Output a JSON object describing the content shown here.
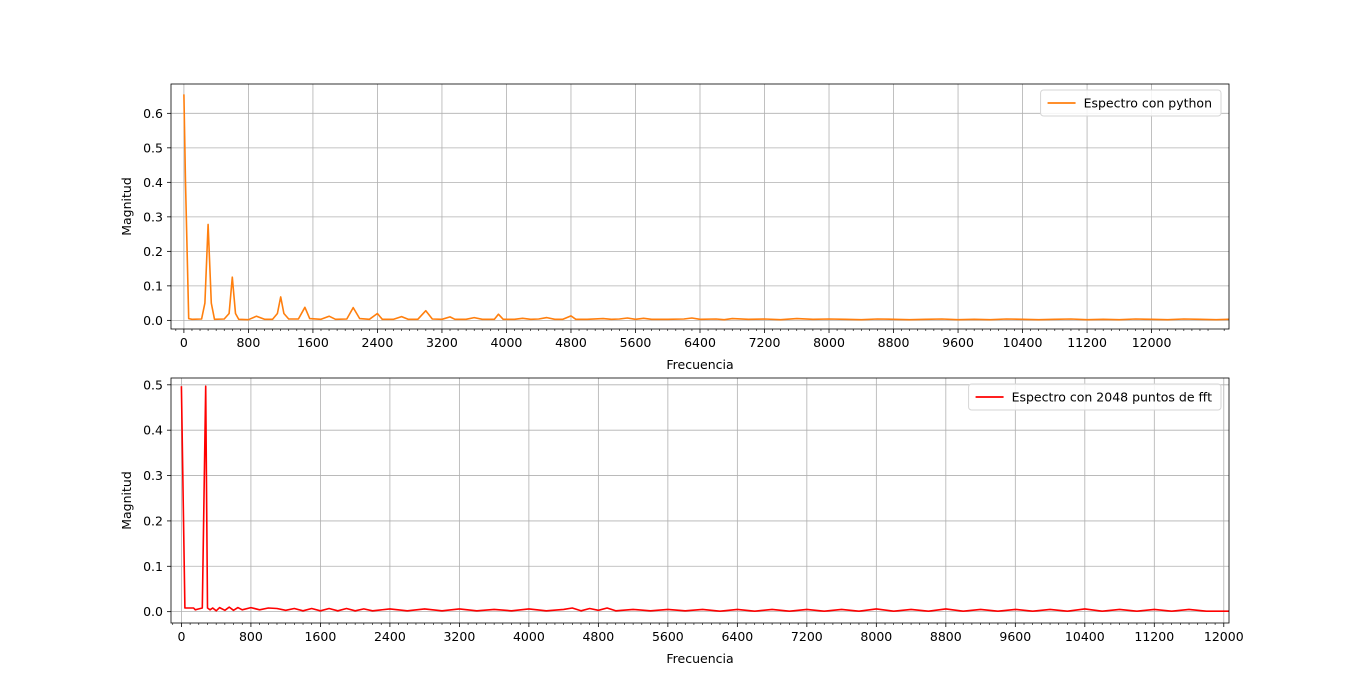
{
  "chart_data": [
    {
      "type": "line",
      "xlabel": "Frecuencia",
      "ylabel": "Magnitud",
      "xlim": [
        -160,
        12960
      ],
      "ylim": [
        -0.025,
        0.685
      ],
      "xticks": [
        0,
        800,
        1600,
        2400,
        3200,
        4000,
        4800,
        5600,
        6400,
        7200,
        8000,
        8800,
        9600,
        10400,
        11200,
        12000
      ],
      "xtick_labels": [
        "0",
        "800",
        "1600",
        "2400",
        "3200",
        "4000",
        "4800",
        "5600",
        "6400",
        "7200",
        "8000",
        "8800",
        "9600",
        "10400",
        "11200",
        "12000"
      ],
      "yticks": [
        0.0,
        0.1,
        0.2,
        0.3,
        0.4,
        0.5,
        0.6
      ],
      "ytick_labels": [
        "0.0",
        "0.1",
        "0.2",
        "0.3",
        "0.4",
        "0.5",
        "0.6"
      ],
      "grid": true,
      "legend_position": "top-right",
      "series": [
        {
          "name": "Espectro con python",
          "color": "#ff7f0e",
          "x": [
            0,
            20,
            60,
            100,
            220,
            260,
            300,
            340,
            380,
            500,
            560,
            600,
            640,
            680,
            800,
            900,
            1000,
            1100,
            1160,
            1200,
            1240,
            1300,
            1420,
            1500,
            1560,
            1700,
            1800,
            1880,
            2020,
            2100,
            2180,
            2300,
            2400,
            2460,
            2600,
            2700,
            2780,
            2900,
            3000,
            3080,
            3200,
            3300,
            3360,
            3500,
            3600,
            3700,
            3850,
            3900,
            3960,
            4100,
            4200,
            4300,
            4400,
            4500,
            4600,
            4700,
            4800,
            4860,
            5000,
            5200,
            5300,
            5400,
            5500,
            5600,
            5700,
            5800,
            6000,
            6200,
            6300,
            6400,
            6600,
            6700,
            6800,
            7000,
            7200,
            7400,
            7600,
            7800,
            8000,
            8200,
            8400,
            8600,
            8800,
            9000,
            9200,
            9400,
            9600,
            9800,
            10000,
            10200,
            10400,
            10600,
            10800,
            11000,
            11200,
            11400,
            11600,
            11800,
            12000,
            12200,
            12400,
            12600,
            12800,
            12960
          ],
          "y": [
            0.655,
            0.4,
            0.005,
            0.003,
            0.004,
            0.05,
            0.278,
            0.05,
            0.003,
            0.004,
            0.02,
            0.125,
            0.02,
            0.003,
            0.002,
            0.012,
            0.003,
            0.003,
            0.02,
            0.068,
            0.02,
            0.004,
            0.004,
            0.038,
            0.005,
            0.003,
            0.012,
            0.003,
            0.004,
            0.037,
            0.005,
            0.003,
            0.02,
            0.003,
            0.003,
            0.011,
            0.003,
            0.003,
            0.028,
            0.004,
            0.003,
            0.01,
            0.003,
            0.003,
            0.008,
            0.003,
            0.003,
            0.018,
            0.003,
            0.003,
            0.006,
            0.003,
            0.004,
            0.008,
            0.003,
            0.003,
            0.013,
            0.003,
            0.003,
            0.005,
            0.003,
            0.004,
            0.007,
            0.003,
            0.006,
            0.003,
            0.003,
            0.004,
            0.007,
            0.003,
            0.004,
            0.002,
            0.005,
            0.003,
            0.004,
            0.002,
            0.005,
            0.003,
            0.004,
            0.003,
            0.002,
            0.004,
            0.003,
            0.002,
            0.003,
            0.004,
            0.002,
            0.003,
            0.002,
            0.004,
            0.003,
            0.002,
            0.003,
            0.004,
            0.002,
            0.003,
            0.002,
            0.004,
            0.003,
            0.002,
            0.004,
            0.003,
            0.002,
            0.003
          ]
        }
      ]
    },
    {
      "type": "line",
      "xlabel": "Frecuencia",
      "ylabel": "Magnitud",
      "xlim": [
        -120,
        12060
      ],
      "ylim": [
        -0.025,
        0.515
      ],
      "xticks": [
        0,
        800,
        1600,
        2400,
        3200,
        4000,
        4800,
        5600,
        6400,
        7200,
        8000,
        8800,
        9600,
        10400,
        11200,
        12000
      ],
      "xtick_labels": [
        "0",
        "800",
        "1600",
        "2400",
        "3200",
        "4000",
        "4800",
        "5600",
        "6400",
        "7200",
        "8000",
        "8800",
        "9600",
        "10400",
        "11200",
        "12000"
      ],
      "yticks": [
        0.0,
        0.1,
        0.2,
        0.3,
        0.4,
        0.5
      ],
      "ytick_labels": [
        "0.0",
        "0.1",
        "0.2",
        "0.3",
        "0.4",
        "0.5"
      ],
      "grid": true,
      "legend_position": "top-right",
      "series": [
        {
          "name": "Espectro con 2048 puntos de fft",
          "color": "#ff0000",
          "x": [
            0,
            40,
            140,
            160,
            200,
            240,
            280,
            300,
            330,
            360,
            400,
            440,
            500,
            550,
            600,
            650,
            700,
            800,
            900,
            1000,
            1100,
            1200,
            1300,
            1400,
            1500,
            1600,
            1700,
            1800,
            1900,
            2000,
            2100,
            2200,
            2400,
            2600,
            2800,
            3000,
            3200,
            3400,
            3600,
            3800,
            4000,
            4200,
            4400,
            4500,
            4600,
            4700,
            4800,
            4900,
            5000,
            5200,
            5400,
            5600,
            5800,
            6000,
            6200,
            6400,
            6600,
            6800,
            7000,
            7200,
            7400,
            7600,
            7800,
            8000,
            8200,
            8400,
            8600,
            8800,
            9000,
            9200,
            9400,
            9600,
            9800,
            10000,
            10200,
            10400,
            10600,
            10800,
            11000,
            11200,
            11400,
            11600,
            11800,
            12000,
            12060
          ],
          "y": [
            0.497,
            0.008,
            0.008,
            0.004,
            0.006,
            0.008,
            0.497,
            0.008,
            0.004,
            0.008,
            0.002,
            0.009,
            0.003,
            0.01,
            0.003,
            0.009,
            0.004,
            0.009,
            0.004,
            0.008,
            0.007,
            0.003,
            0.007,
            0.002,
            0.007,
            0.002,
            0.007,
            0.002,
            0.007,
            0.002,
            0.006,
            0.002,
            0.006,
            0.002,
            0.006,
            0.002,
            0.006,
            0.002,
            0.005,
            0.002,
            0.006,
            0.002,
            0.005,
            0.008,
            0.002,
            0.007,
            0.003,
            0.008,
            0.002,
            0.005,
            0.002,
            0.005,
            0.002,
            0.005,
            0.001,
            0.005,
            0.001,
            0.005,
            0.001,
            0.005,
            0.001,
            0.005,
            0.001,
            0.006,
            0.001,
            0.005,
            0.001,
            0.006,
            0.001,
            0.005,
            0.001,
            0.005,
            0.001,
            0.005,
            0.001,
            0.006,
            0.001,
            0.005,
            0.001,
            0.005,
            0.001,
            0.005,
            0.001,
            0.001,
            0.001
          ]
        }
      ]
    }
  ]
}
